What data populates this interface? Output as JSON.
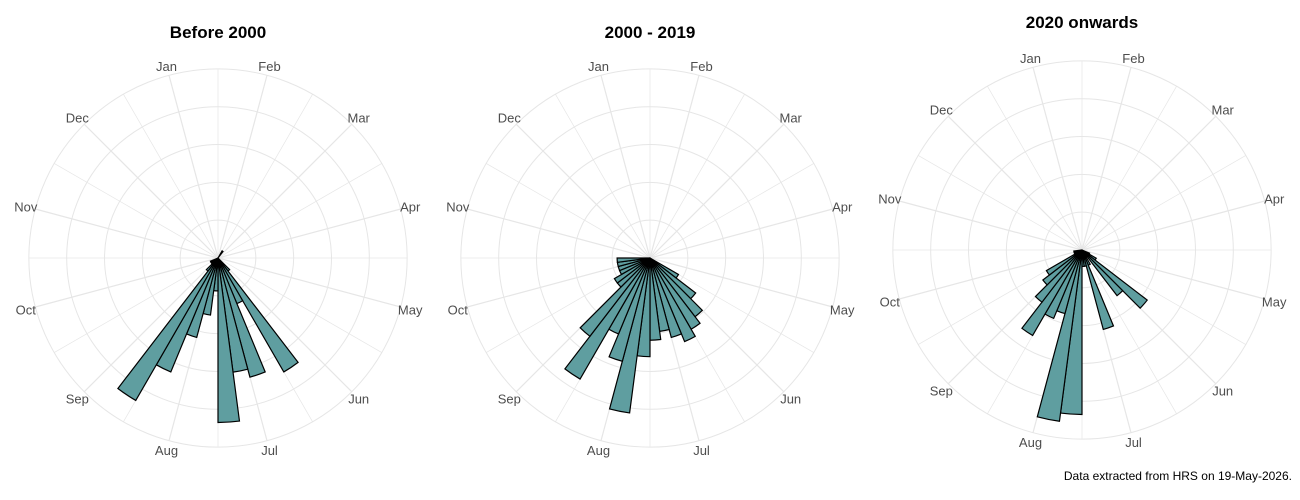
{
  "caption": "Data extracted from HRS on 19-May-2026.",
  "colors": {
    "bar_fill": "#5f9ea0",
    "bar_stroke": "#000000",
    "grid": "#e6e6e6"
  },
  "month_labels": [
    "Jan",
    "Feb",
    "Mar",
    "Apr",
    "May",
    "Jun",
    "Jul",
    "Aug",
    "Sep",
    "Oct",
    "Nov",
    "Dec"
  ],
  "chart_data": [
    {
      "type": "bar",
      "coord": "polar",
      "title": "Before 2000",
      "categories": [
        "Jun",
        "Jul",
        "Aug",
        "Sep",
        "Oct",
        "Nov",
        "Dec"
      ],
      "bins_per_month": 4,
      "bins": [
        {
          "bin": "Jun-3",
          "value": 2
        },
        {
          "bin": "Jun-4",
          "value": 16
        },
        {
          "bin": "Jul-1",
          "value": 6
        },
        {
          "bin": "Jul-2",
          "value": 15
        },
        {
          "bin": "Jul-3",
          "value": 14
        },
        {
          "bin": "Jul-4",
          "value": 20
        },
        {
          "bin": "Aug-1",
          "value": 4
        },
        {
          "bin": "Aug-2",
          "value": 7
        },
        {
          "bin": "Aug-3",
          "value": 10
        },
        {
          "bin": "Aug-4",
          "value": 15
        },
        {
          "bin": "Sep-1",
          "value": 20
        },
        {
          "bin": "Sep-2",
          "value": 2
        },
        {
          "bin": "Sep-3",
          "value": 1
        },
        {
          "bin": "Sep-4",
          "value": 1
        },
        {
          "bin": "Oct-1",
          "value": 1
        },
        {
          "bin": "Mar-1",
          "value": 1
        }
      ],
      "rlim": [
        0,
        23
      ]
    },
    {
      "type": "bar",
      "coord": "polar",
      "title": "2000 - 2019",
      "categories": [
        "Jun",
        "Jul",
        "Aug",
        "Sep",
        "Oct",
        "Nov",
        "Dec"
      ],
      "bins_per_month": 4,
      "bins": [
        {
          "bin": "Jun-1",
          "value": 4
        },
        {
          "bin": "Jun-2",
          "value": 7
        },
        {
          "bin": "Jun-3",
          "value": 9
        },
        {
          "bin": "Jun-4",
          "value": 10
        },
        {
          "bin": "Jul-1",
          "value": 11
        },
        {
          "bin": "Jul-2",
          "value": 10
        },
        {
          "bin": "Jul-3",
          "value": 9
        },
        {
          "bin": "Jul-4",
          "value": 10
        },
        {
          "bin": "Aug-1",
          "value": 12
        },
        {
          "bin": "Aug-2",
          "value": 19
        },
        {
          "bin": "Aug-3",
          "value": 13
        },
        {
          "bin": "Aug-4",
          "value": 10
        },
        {
          "bin": "Sep-1",
          "value": 17
        },
        {
          "bin": "Sep-2",
          "value": 12
        },
        {
          "bin": "Sep-3",
          "value": 5
        },
        {
          "bin": "Sep-4",
          "value": 5
        },
        {
          "bin": "Oct-1",
          "value": 4
        },
        {
          "bin": "Oct-2",
          "value": 4
        },
        {
          "bin": "Oct-3",
          "value": 4
        },
        {
          "bin": "Oct-4",
          "value": 4
        }
      ],
      "rlim": [
        0,
        23
      ]
    },
    {
      "type": "bar",
      "coord": "polar",
      "title": "2020 onwards",
      "categories": [
        "Jun",
        "Jul",
        "Aug",
        "Sep",
        "Oct",
        "Nov",
        "Dec"
      ],
      "bins_per_month": 4,
      "bins": [
        {
          "bin": "May-4",
          "value": 1
        },
        {
          "bin": "Jun-1",
          "value": 2
        },
        {
          "bin": "Jun-2",
          "value": 10
        },
        {
          "bin": "Jun-3",
          "value": 7
        },
        {
          "bin": "Jun-4",
          "value": 1
        },
        {
          "bin": "Jul-1",
          "value": 2
        },
        {
          "bin": "Jul-2",
          "value": 10
        },
        {
          "bin": "Jul-3",
          "value": 2
        },
        {
          "bin": "Jul-4",
          "value": 2
        },
        {
          "bin": "Aug-1",
          "value": 20
        },
        {
          "bin": "Aug-2",
          "value": 21
        },
        {
          "bin": "Aug-3",
          "value": 8
        },
        {
          "bin": "Aug-4",
          "value": 9
        },
        {
          "bin": "Sep-1",
          "value": 12
        },
        {
          "bin": "Sep-2",
          "value": 8
        },
        {
          "bin": "Sep-3",
          "value": 6
        },
        {
          "bin": "Sep-4",
          "value": 5
        },
        {
          "bin": "Oct-1",
          "value": 1
        },
        {
          "bin": "Oct-2",
          "value": 1
        },
        {
          "bin": "Oct-3",
          "value": 1
        }
      ],
      "rlim": [
        0,
        23
      ]
    }
  ]
}
